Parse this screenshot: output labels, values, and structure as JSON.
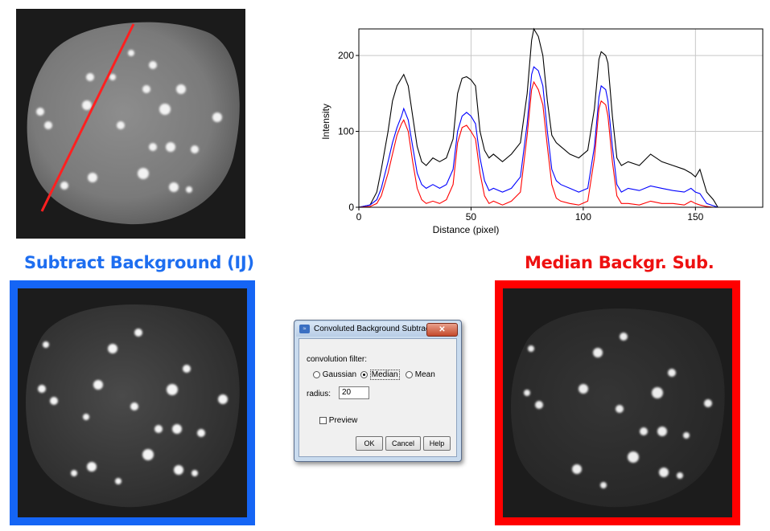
{
  "headings": {
    "left": "Subtract Background (IJ)",
    "right": "Median Backgr. Sub."
  },
  "colors": {
    "left_heading": "#1e6ef0",
    "right_heading": "#ee1111",
    "left_frame": "#1565f5",
    "right_frame": "#ff0000",
    "profile_line": "#ff2020"
  },
  "dialog": {
    "title": "Convoluted Background Subtrac...",
    "close_label": "✕",
    "filter_label": "convolution filter:",
    "options": [
      "Gaussian",
      "Median",
      "Mean"
    ],
    "selected": "Median",
    "radius_label": "radius:",
    "radius_value": "20",
    "preview_label": "Preview",
    "preview_checked": false,
    "buttons": {
      "ok": "OK",
      "cancel": "Cancel",
      "help": "Help"
    }
  },
  "chart_data": {
    "type": "line",
    "title": "",
    "xlabel": "Distance (pixel)",
    "ylabel": "Intensity",
    "xlim": [
      0,
      180
    ],
    "ylim": [
      0,
      235
    ],
    "xticks": [
      0,
      50,
      100,
      150
    ],
    "yticks": [
      0,
      100,
      200
    ],
    "grid": true,
    "series": [
      {
        "color": "#000000",
        "x": [
          0,
          5,
          8,
          10,
          13,
          15,
          17,
          19,
          20,
          22,
          24,
          26,
          28,
          30,
          33,
          36,
          39,
          42,
          44,
          46,
          48,
          50,
          52,
          54,
          56,
          58,
          60,
          64,
          68,
          72,
          75,
          77,
          78,
          80,
          82,
          84,
          86,
          88,
          90,
          94,
          98,
          102,
          105,
          107,
          108,
          110,
          111,
          113,
          115,
          117,
          120,
          125,
          130,
          135,
          140,
          145,
          148,
          150,
          152,
          155,
          158,
          160,
          163,
          166,
          170,
          175,
          180
        ],
        "y": [
          0,
          3,
          20,
          50,
          100,
          140,
          160,
          170,
          175,
          160,
          120,
          80,
          60,
          55,
          65,
          60,
          65,
          90,
          150,
          170,
          172,
          168,
          160,
          100,
          75,
          65,
          70,
          60,
          70,
          85,
          150,
          220,
          235,
          225,
          200,
          140,
          95,
          85,
          80,
          70,
          65,
          75,
          130,
          195,
          205,
          200,
          190,
          120,
          65,
          55,
          60,
          55,
          70,
          60,
          55,
          50,
          45,
          40,
          50,
          20,
          10,
          0,
          0,
          0,
          0,
          0,
          0
        ]
      },
      {
        "color": "#0000ff",
        "x": [
          0,
          5,
          8,
          10,
          13,
          15,
          17,
          19,
          20,
          22,
          24,
          26,
          28,
          30,
          33,
          36,
          39,
          42,
          44,
          46,
          48,
          50,
          52,
          54,
          56,
          58,
          60,
          64,
          68,
          72,
          75,
          77,
          78,
          80,
          82,
          84,
          86,
          88,
          90,
          94,
          98,
          102,
          105,
          107,
          108,
          110,
          111,
          113,
          115,
          117,
          120,
          125,
          130,
          135,
          140,
          145,
          148,
          150,
          152,
          155,
          158,
          160,
          163,
          166,
          170,
          175,
          180
        ],
        "y": [
          0,
          3,
          10,
          25,
          60,
          85,
          105,
          120,
          130,
          115,
          80,
          45,
          30,
          25,
          30,
          25,
          30,
          50,
          100,
          120,
          125,
          120,
          110,
          65,
          35,
          22,
          25,
          20,
          25,
          40,
          110,
          175,
          185,
          180,
          160,
          100,
          50,
          35,
          30,
          25,
          20,
          25,
          80,
          145,
          160,
          155,
          140,
          80,
          30,
          20,
          25,
          22,
          28,
          25,
          22,
          20,
          25,
          20,
          18,
          5,
          2,
          0,
          0,
          0,
          0,
          0,
          0
        ]
      },
      {
        "color": "#ff0000",
        "x": [
          0,
          5,
          8,
          10,
          13,
          15,
          17,
          19,
          20,
          22,
          24,
          26,
          28,
          30,
          33,
          36,
          39,
          42,
          44,
          46,
          48,
          50,
          52,
          54,
          56,
          58,
          60,
          64,
          68,
          72,
          75,
          77,
          78,
          80,
          82,
          84,
          86,
          88,
          90,
          94,
          98,
          102,
          105,
          107,
          108,
          110,
          111,
          113,
          115,
          117,
          120,
          125,
          130,
          135,
          140,
          145,
          148,
          150,
          152,
          155,
          158,
          160,
          163,
          166,
          170,
          175,
          180
        ],
        "y": [
          0,
          1,
          5,
          15,
          45,
          70,
          95,
          110,
          115,
          100,
          60,
          25,
          10,
          5,
          8,
          5,
          10,
          30,
          85,
          105,
          108,
          100,
          90,
          45,
          15,
          5,
          8,
          3,
          8,
          20,
          95,
          155,
          165,
          155,
          135,
          80,
          30,
          12,
          8,
          5,
          3,
          8,
          65,
          130,
          140,
          135,
          120,
          60,
          15,
          5,
          5,
          3,
          8,
          5,
          5,
          3,
          8,
          5,
          3,
          1,
          0,
          0,
          0,
          0,
          0,
          0,
          0
        ]
      }
    ]
  }
}
